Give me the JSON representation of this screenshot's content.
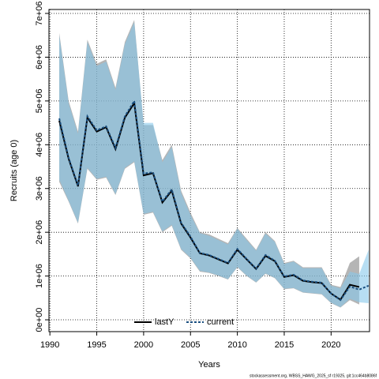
{
  "chart_data": {
    "type": "band-line",
    "xlabel": "Years",
    "ylabel": "Recruits (age 0)",
    "footer": "stockassessment.org, WBSS_HAWG_2025_sf r19325, git:1cc464b8086f",
    "x": [
      1991,
      1992,
      1993,
      1994,
      1995,
      1996,
      1997,
      1998,
      1999,
      2000,
      2001,
      2002,
      2003,
      2004,
      2005,
      2006,
      2007,
      2008,
      2009,
      2010,
      2011,
      2012,
      2013,
      2014,
      2015,
      2016,
      2017,
      2018,
      2019,
      2020,
      2021,
      2022,
      2023,
      2024
    ],
    "xlim": [
      1989.9,
      2024.1
    ],
    "xticks": [
      1990,
      1995,
      2000,
      2005,
      2010,
      2015,
      2020
    ],
    "ylim": [
      -270000,
      7090000
    ],
    "yticks": [
      {
        "value": 0,
        "label": "0e+00"
      },
      {
        "value": 1000000,
        "label": "1e+06"
      },
      {
        "value": 2000000,
        "label": "2e+06"
      },
      {
        "value": 3000000,
        "label": "3e+06"
      },
      {
        "value": 4000000,
        "label": "4e+06"
      },
      {
        "value": 5000000,
        "label": "5e+06"
      },
      {
        "value": 6000000,
        "label": "6e+06"
      },
      {
        "value": 7000000,
        "label": "7e+06"
      }
    ],
    "grid": true,
    "legend": "bottom",
    "series": [
      {
        "name": "lastY",
        "color": "#000000",
        "band_color": "rgba(120,120,120,0.55)",
        "dash": false,
        "values": [
          4550000.0,
          3680000.0,
          3050000.0,
          4620000.0,
          4300000.0,
          4400000.0,
          3900000.0,
          4620000.0,
          4950000.0,
          3300000.0,
          3350000.0,
          2680000.0,
          2950000.0,
          2200000.0,
          1880000.0,
          1520000.0,
          1470000.0,
          1380000.0,
          1290000.0,
          1600000.0,
          1380000.0,
          1160000.0,
          1460000.0,
          1340000.0,
          980000.0,
          1020000.0,
          890000.0,
          860000.0,
          840000.0,
          600000.0,
          460000.0,
          800000.0,
          750000.0,
          null
        ],
        "lower": [
          3150000.0,
          2700000.0,
          2200000.0,
          3450000.0,
          3200000.0,
          3250000.0,
          2850000.0,
          3450000.0,
          3600000.0,
          2400000.0,
          2450000.0,
          2000000.0,
          2150000.0,
          1600000.0,
          1400000.0,
          1100000.0,
          1070000.0,
          1000000.0,
          920000.0,
          1200000.0,
          1000000.0,
          850000.0,
          1050000.0,
          950000.0,
          700000.0,
          720000.0,
          620000.0,
          600000.0,
          580000.0,
          380000.0,
          280000.0,
          450000.0,
          350000.0,
          null
        ],
        "upper": [
          6550000.0,
          5000000.0,
          4300000.0,
          6400000.0,
          5850000.0,
          5950000.0,
          5300000.0,
          6350000.0,
          6850000.0,
          4450000.0,
          4450000.0,
          3650000.0,
          4000000.0,
          2950000.0,
          2450000.0,
          2000000.0,
          1950000.0,
          1850000.0,
          1750000.0,
          2100000.0,
          1850000.0,
          1600000.0,
          2000000.0,
          1800000.0,
          1300000.0,
          1350000.0,
          1200000.0,
          1200000.0,
          1200000.0,
          800000.0,
          750000.0,
          1300000.0,
          1450000.0,
          null
        ]
      },
      {
        "name": "current",
        "color": "#1a4f80",
        "band_color": "rgba(135,200,235,0.6)",
        "dash": true,
        "values": [
          4600000.0,
          3700000.0,
          3070000.0,
          4650000.0,
          4330000.0,
          4420000.0,
          3930000.0,
          4650000.0,
          5000000.0,
          3340000.0,
          3370000.0,
          2700000.0,
          2980000.0,
          2220000.0,
          1900000.0,
          1530000.0,
          1480000.0,
          1390000.0,
          1300000.0,
          1620000.0,
          1390000.0,
          1170000.0,
          1480000.0,
          1350000.0,
          990000.0,
          1030000.0,
          900000.0,
          870000.0,
          850000.0,
          600000.0,
          450000.0,
          760000.0,
          690000.0,
          780000.0
        ],
        "lower": [
          3200000.0,
          2720000.0,
          2220000.0,
          3470000.0,
          3220000.0,
          3270000.0,
          2870000.0,
          3470000.0,
          3620000.0,
          2420000.0,
          2470000.0,
          2020000.0,
          2170000.0,
          1620000.0,
          1420000.0,
          1120000.0,
          1080000.0,
          1010000.0,
          930000.0,
          1210000.0,
          1010000.0,
          860000.0,
          1060000.0,
          960000.0,
          710000.0,
          730000.0,
          630000.0,
          610000.0,
          590000.0,
          390000.0,
          290000.0,
          480000.0,
          400000.0,
          380000.0
        ],
        "upper": [
          6500000.0,
          4950000.0,
          4250000.0,
          6350000.0,
          5800000.0,
          5900000.0,
          5250000.0,
          6300000.0,
          6800000.0,
          4500000.0,
          4500000.0,
          3600000.0,
          3950000.0,
          2900000.0,
          2400000.0,
          1980000.0,
          1920000.0,
          1820000.0,
          1720000.0,
          2080000.0,
          1820000.0,
          1580000.0,
          1970000.0,
          1780000.0,
          1280000.0,
          1330000.0,
          1180000.0,
          1180000.0,
          1180000.0,
          780000.0,
          720000.0,
          1100000.0,
          1050000.0,
          1600000.0
        ]
      }
    ]
  }
}
